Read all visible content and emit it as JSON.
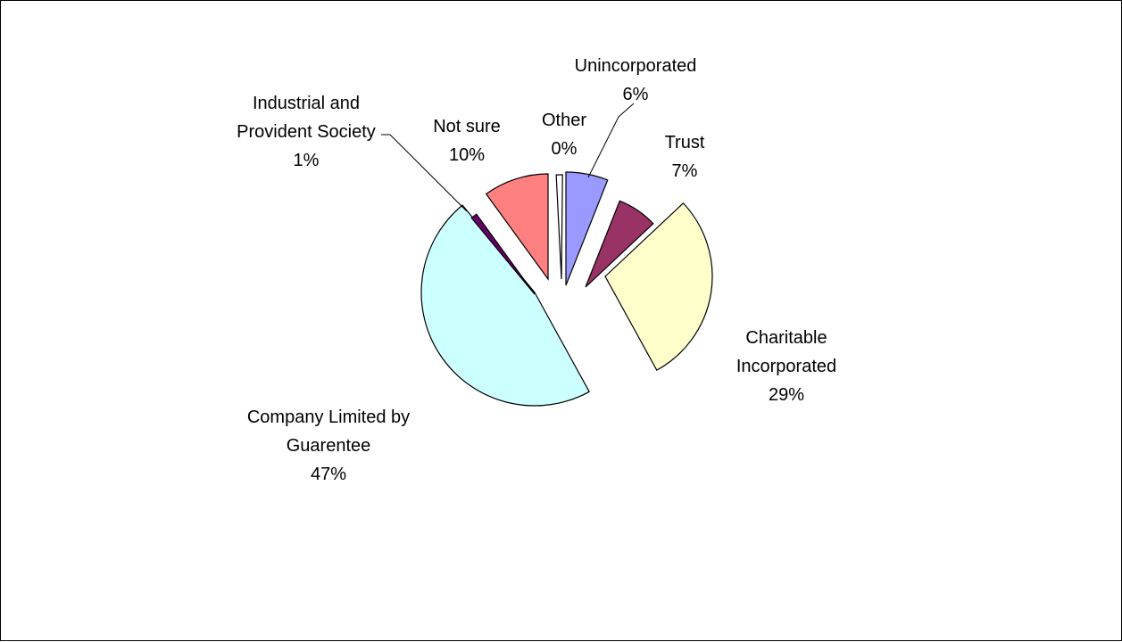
{
  "chart_data": {
    "type": "pie",
    "exploded": true,
    "slices": [
      {
        "label_lines": [
          "Unincorporated"
        ],
        "pct_label": "6%",
        "value": 6,
        "color": "#9999FF"
      },
      {
        "label_lines": [
          "Trust"
        ],
        "pct_label": "7%",
        "value": 7,
        "color": "#993366"
      },
      {
        "label_lines": [
          "Charitable",
          "Incorporated"
        ],
        "pct_label": "29%",
        "value": 29,
        "color": "#FFFFCC"
      },
      {
        "label_lines": [
          "Company Limited by",
          "Guarentee"
        ],
        "pct_label": "47%",
        "value": 47,
        "color": "#CCFFFF"
      },
      {
        "label_lines": [
          "Industrial and",
          "Provident Society"
        ],
        "pct_label": "1%",
        "value": 1,
        "color": "#660066"
      },
      {
        "label_lines": [
          "Not sure"
        ],
        "pct_label": "10%",
        "value": 10,
        "color": "#FF8080"
      },
      {
        "label_lines": [
          "Other"
        ],
        "pct_label": "0%",
        "value": 0,
        "color": "#FFFFFF"
      }
    ]
  }
}
